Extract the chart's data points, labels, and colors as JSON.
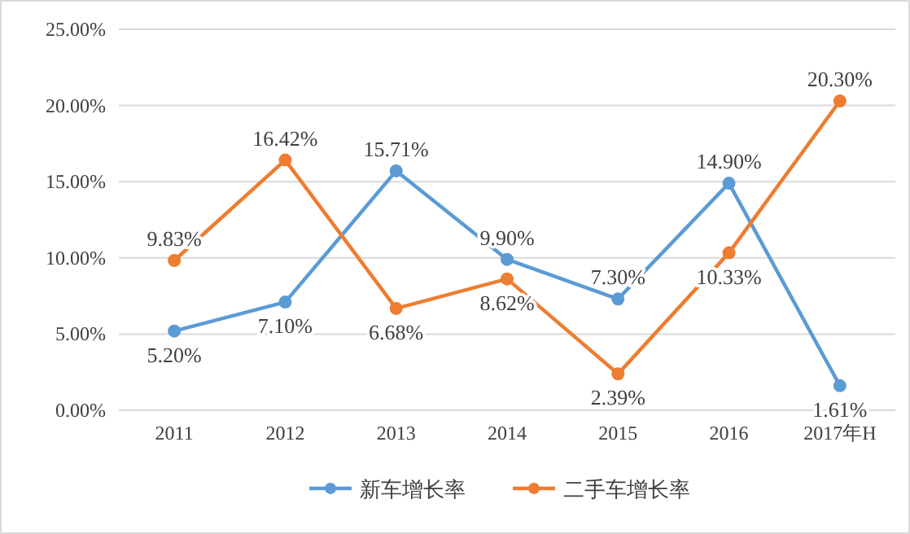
{
  "chart_data": {
    "type": "line",
    "categories": [
      "2011",
      "2012",
      "2013",
      "2014",
      "2015",
      "2016",
      "2017年H"
    ],
    "series": [
      {
        "name": "新车增长率",
        "color": "#5b9bd5",
        "values": [
          5.2,
          7.1,
          15.71,
          9.9,
          7.3,
          14.9,
          1.61
        ],
        "value_labels": [
          "5.20%",
          "7.10%",
          "15.71%",
          "9.90%",
          "7.30%",
          "14.90%",
          "1.61%"
        ]
      },
      {
        "name": "二手车增长率",
        "color": "#ed7d31",
        "values": [
          9.83,
          16.42,
          6.68,
          8.62,
          2.39,
          10.33,
          20.3
        ],
        "value_labels": [
          "9.83%",
          "16.42%",
          "6.68%",
          "8.62%",
          "2.39%",
          "10.33%",
          "20.30%"
        ]
      }
    ],
    "ylim": [
      0,
      25
    ],
    "yticks": [
      {
        "value": 0,
        "label": "0.00%"
      },
      {
        "value": 5,
        "label": "5.00%"
      },
      {
        "value": 10,
        "label": "10.00%"
      },
      {
        "value": 15,
        "label": "15.00%"
      },
      {
        "value": 20,
        "label": "20.00%"
      },
      {
        "value": 25,
        "label": "25.00%"
      }
    ],
    "grid": "y",
    "legend": "bottom",
    "marker": "circle",
    "line_style": "solid"
  }
}
